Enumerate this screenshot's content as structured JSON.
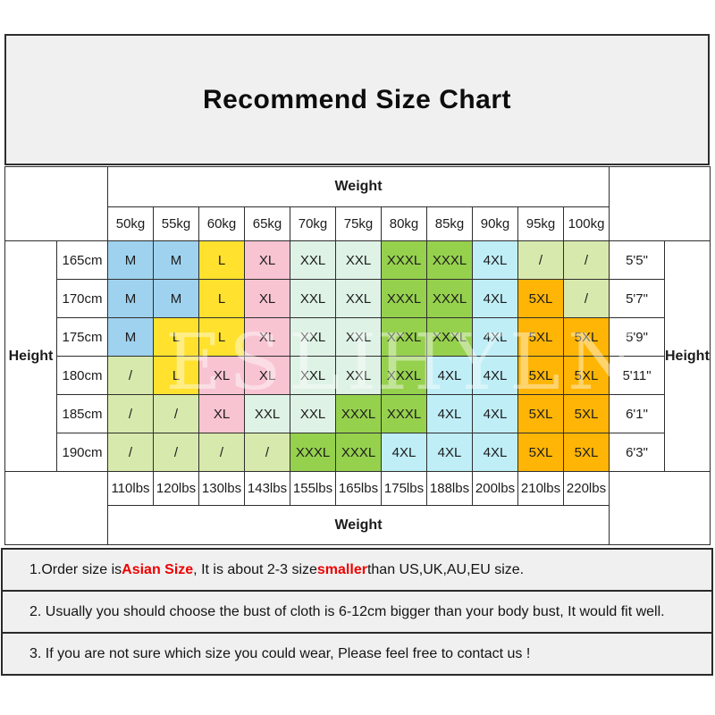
{
  "title": "Recommend Size Chart",
  "watermark": {
    "left": "ESLI",
    "right": "HYLN"
  },
  "labels": {
    "weight_top": "Weight",
    "weight_bottom": "Weight",
    "height_left": "Height",
    "height_right": "Height"
  },
  "chart_data": {
    "type": "table",
    "title": "Recommend Size Chart",
    "kg_columns": [
      "50kg",
      "55kg",
      "60kg",
      "65kg",
      "70kg",
      "75kg",
      "80kg",
      "85kg",
      "90kg",
      "95kg",
      "100kg"
    ],
    "lbs_columns": [
      "110lbs",
      "120lbs",
      "130lbs",
      "143lbs",
      "155lbs",
      "165lbs",
      "175lbs",
      "188lbs",
      "200lbs",
      "210lbs",
      "220lbs"
    ],
    "rows": [
      {
        "cm": "165cm",
        "ft": "5'5\"",
        "sizes": [
          "M",
          "M",
          "L",
          "XL",
          "XXL",
          "XXL",
          "XXXL",
          "XXXL",
          "4XL",
          "/",
          "/"
        ]
      },
      {
        "cm": "170cm",
        "ft": "5'7\"",
        "sizes": [
          "M",
          "M",
          "L",
          "XL",
          "XXL",
          "XXL",
          "XXXL",
          "XXXL",
          "4XL",
          "5XL",
          "/"
        ]
      },
      {
        "cm": "175cm",
        "ft": "5'9\"",
        "sizes": [
          "M",
          "L",
          "L",
          "XL",
          "XXL",
          "XXL",
          "XXXL",
          "XXXL",
          "4XL",
          "5XL",
          "5XL"
        ]
      },
      {
        "cm": "180cm",
        "ft": "5'11\"",
        "sizes": [
          "/",
          "L",
          "XL",
          "XL",
          "XXL",
          "XXL",
          "XXXL",
          "4XL",
          "4XL",
          "5XL",
          "5XL"
        ]
      },
      {
        "cm": "185cm",
        "ft": "6'1\"",
        "sizes": [
          "/",
          "/",
          "XL",
          "XXL",
          "XXL",
          "XXXL",
          "XXXL",
          "4XL",
          "4XL",
          "5XL",
          "5XL"
        ]
      },
      {
        "cm": "190cm",
        "ft": "6'3\"",
        "sizes": [
          "/",
          "/",
          "/",
          "/",
          "XXXL",
          "XXXL",
          "4XL",
          "4XL",
          "4XL",
          "5XL",
          "5XL"
        ]
      }
    ],
    "size_colors": {
      "M": "#9fd2ee",
      "L": "#ffe12e",
      "XL": "#f9c4d2",
      "XXL": "#def2e6",
      "XXXL": "#96d14e",
      "4XL": "#bfeef7",
      "5XL": "#ffb505",
      "/": "#d8e9ad"
    }
  },
  "notes": [
    {
      "parts": [
        {
          "t": "1.Order size is "
        },
        {
          "t": "Asian Size",
          "red": true
        },
        {
          "t": ", It is about 2-3 size "
        },
        {
          "t": "smaller",
          "red": true
        },
        {
          "t": " than US,UK,AU,EU size."
        }
      ]
    },
    {
      "parts": [
        {
          "t": "2. Usually you should choose the bust of cloth is 6-12cm bigger than your body bust, It would fit well."
        }
      ]
    },
    {
      "parts": [
        {
          "t": "3. If you are not sure which size you could wear, Please feel free to contact us !"
        }
      ]
    }
  ],
  "note_red_color": "#ef0000"
}
